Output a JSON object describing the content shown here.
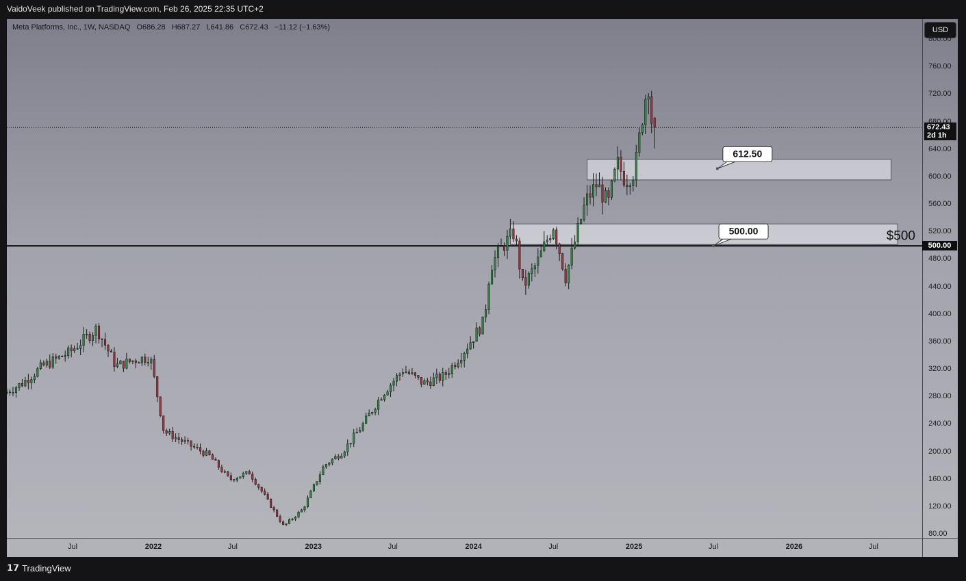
{
  "header": {
    "publish_line": "VaidoVeek published on TradingView.com, Feb 26, 2025 22:35 UTC+2"
  },
  "legend": {
    "symbol": "Meta Platforms, Inc., 1W, NASDAQ",
    "open": "O686.28",
    "high": "H687.27",
    "low": "L641.86",
    "close": "C672.43",
    "change": "−11.12 (−1.63%)"
  },
  "currency_button": "USD",
  "last_price": {
    "value": "672.43",
    "countdown": "2d 1h"
  },
  "level_line": {
    "value": "500.00"
  },
  "footer": {
    "brand": "TradingView"
  },
  "colors": {
    "up": "#2f8f45",
    "down": "#a4333c",
    "zone_fill": "#d9dae0",
    "line": "#000000"
  },
  "chart_data": {
    "type": "candlestick",
    "y_scale": "linear",
    "ylim": [
      75,
      830
    ],
    "y_ticks": [
      "80.00",
      "120.00",
      "160.00",
      "200.00",
      "240.00",
      "280.00",
      "320.00",
      "360.00",
      "400.00",
      "440.00",
      "480.00",
      "520.00",
      "560.00",
      "600.00",
      "640.00",
      "680.00",
      "720.00",
      "760.00",
      "800.00"
    ],
    "x_ticks": [
      {
        "label": "Jul",
        "date": "2021-07-01",
        "bold": false
      },
      {
        "label": "2022",
        "date": "2022-01-01",
        "bold": true
      },
      {
        "label": "Jul",
        "date": "2022-07-01",
        "bold": false
      },
      {
        "label": "2023",
        "date": "2023-01-01",
        "bold": true
      },
      {
        "label": "Jul",
        "date": "2023-07-01",
        "bold": false
      },
      {
        "label": "2024",
        "date": "2024-01-01",
        "bold": true
      },
      {
        "label": "Jul",
        "date": "2024-07-01",
        "bold": false
      },
      {
        "label": "2025",
        "date": "2025-01-01",
        "bold": true
      },
      {
        "label": "Jul",
        "date": "2025-07-01",
        "bold": false
      },
      {
        "label": "2026",
        "date": "2026-01-01",
        "bold": true
      },
      {
        "label": "Jul",
        "date": "2026-07-01",
        "bold": false
      }
    ],
    "x_range": [
      "2021-02-01",
      "2026-10-20"
    ],
    "anchors": [
      {
        "date": "2021-02-01",
        "close": 285
      },
      {
        "date": "2021-03-15",
        "close": 300
      },
      {
        "date": "2021-05-01",
        "close": 325
      },
      {
        "date": "2021-07-01",
        "close": 345
      },
      {
        "date": "2021-09-01",
        "close": 380
      },
      {
        "date": "2021-10-15",
        "close": 325
      },
      {
        "date": "2021-12-01",
        "close": 335
      },
      {
        "date": "2022-01-01",
        "close": 338
      },
      {
        "date": "2022-02-01",
        "close": 230
      },
      {
        "date": "2022-04-01",
        "close": 210
      },
      {
        "date": "2022-05-15",
        "close": 195
      },
      {
        "date": "2022-07-01",
        "close": 160
      },
      {
        "date": "2022-08-15",
        "close": 170
      },
      {
        "date": "2022-09-15",
        "close": 140
      },
      {
        "date": "2022-11-01",
        "close": 92
      },
      {
        "date": "2022-12-15",
        "close": 117
      },
      {
        "date": "2023-02-01",
        "close": 180
      },
      {
        "date": "2023-03-15",
        "close": 200
      },
      {
        "date": "2023-05-01",
        "close": 240
      },
      {
        "date": "2023-06-15",
        "close": 285
      },
      {
        "date": "2023-08-01",
        "close": 320
      },
      {
        "date": "2023-09-15",
        "close": 300
      },
      {
        "date": "2023-11-01",
        "close": 310
      },
      {
        "date": "2023-12-15",
        "close": 345
      },
      {
        "date": "2024-02-01",
        "close": 390
      },
      {
        "date": "2024-02-15",
        "close": 470
      },
      {
        "date": "2024-03-15",
        "close": 500
      },
      {
        "date": "2024-04-10",
        "close": 520
      },
      {
        "date": "2024-04-30",
        "close": 440
      },
      {
        "date": "2024-06-01",
        "close": 475
      },
      {
        "date": "2024-07-08",
        "close": 530
      },
      {
        "date": "2024-08-05",
        "close": 455
      },
      {
        "date": "2024-09-01",
        "close": 520
      },
      {
        "date": "2024-09-20",
        "close": 565
      },
      {
        "date": "2024-10-15",
        "close": 590
      },
      {
        "date": "2024-11-10",
        "close": 560
      },
      {
        "date": "2024-12-01",
        "close": 620
      },
      {
        "date": "2024-12-20",
        "close": 595
      },
      {
        "date": "2025-01-10",
        "close": 610
      },
      {
        "date": "2025-02-01",
        "close": 712
      },
      {
        "date": "2025-02-10",
        "close": 735
      },
      {
        "date": "2025-02-17",
        "close": 683
      },
      {
        "date": "2025-02-24",
        "close": 672.43
      }
    ],
    "last_candle": {
      "open": 686.28,
      "high": 687.27,
      "low": 641.86,
      "close": 672.43
    },
    "zones": [
      {
        "top": 626,
        "bottom": 596,
        "start": "2024-09-16",
        "end": "2026-08-10",
        "label": "612.50",
        "callout_at": "2025-07-10",
        "callout_price": 612.5
      },
      {
        "top": 532,
        "bottom": 502,
        "start": "2024-03-25",
        "end": "2026-08-25",
        "label": "500.00",
        "callout_at": "2025-07-01",
        "callout_price": 500
      }
    ],
    "horizontal_lines": [
      {
        "price": 500,
        "style": "solid",
        "label": "$500"
      },
      {
        "price": 672.43,
        "style": "dotted"
      }
    ]
  }
}
